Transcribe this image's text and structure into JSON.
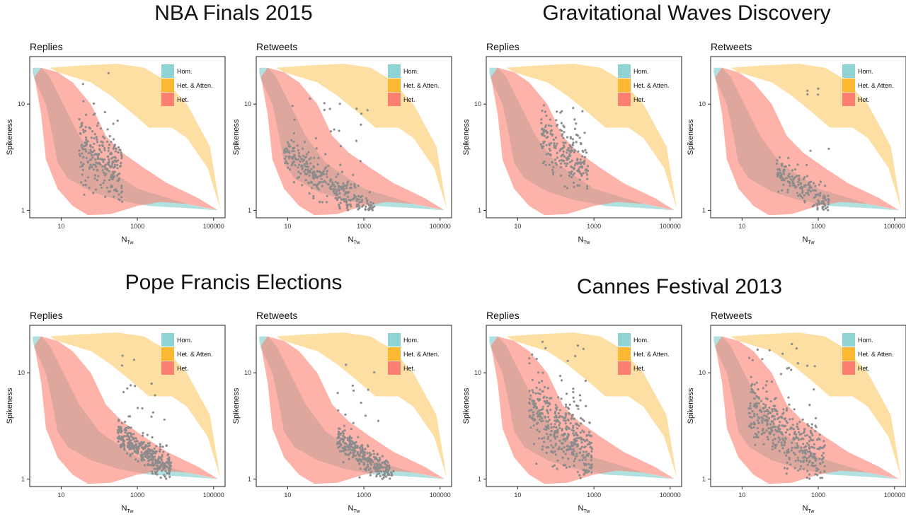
{
  "events": [
    {
      "title": "NBA Finals 2015"
    },
    {
      "title": "Gravitational Waves Discovery"
    },
    {
      "title": "Pope Francis Elections"
    },
    {
      "title": "Cannes Festival 2013"
    }
  ],
  "chart_data": [
    {
      "type": "scatter",
      "event": "NBA Finals 2015",
      "title": "Replies",
      "xlabel": "N_Tw",
      "ylabel": "Spikeness",
      "x_scale": "log",
      "y_scale": "log",
      "xlim": [
        1.5,
        200000
      ],
      "ylim": [
        0.85,
        28
      ],
      "x_ticks": [
        "10",
        "1000",
        "100000"
      ],
      "y_ticks": [
        "1",
        "10"
      ],
      "grid": false,
      "legend_position": "top-right",
      "legend": [
        "Hom.",
        "Het. & Atten.",
        "Het."
      ],
      "cluster": {
        "x_range": [
          30,
          400
        ],
        "y_center": 3,
        "y_spread": 0.9,
        "n": 260,
        "tail_y_max": 20
      }
    },
    {
      "type": "scatter",
      "event": "NBA Finals 2015",
      "title": "Retweets",
      "xlabel": "N_Tw",
      "ylabel": "Spikeness",
      "x_scale": "log",
      "y_scale": "log",
      "xlim": [
        1.5,
        200000
      ],
      "ylim": [
        0.85,
        28
      ],
      "x_ticks": [
        "10",
        "1000",
        "100000"
      ],
      "y_ticks": [
        "1",
        "10"
      ],
      "grid": false,
      "legend_position": "top-right",
      "legend": [
        "Hom.",
        "Het. & Atten.",
        "Het."
      ],
      "cluster": {
        "x_range": [
          8,
          2000
        ],
        "y_center": 1.8,
        "y_spread": 0.5,
        "n": 380,
        "tail_y_max": 12
      }
    },
    {
      "type": "scatter",
      "event": "Gravitational Waves Discovery",
      "title": "Replies",
      "xlabel": "N_Tw",
      "ylabel": "Spikeness",
      "x_scale": "log",
      "y_scale": "log",
      "xlim": [
        1.5,
        200000
      ],
      "ylim": [
        0.85,
        28
      ],
      "x_ticks": [
        "10",
        "1000",
        "100000"
      ],
      "y_ticks": [
        "1",
        "10"
      ],
      "grid": false,
      "legend_position": "top-right",
      "legend": [
        "Hom.",
        "Het. & Atten.",
        "Het."
      ],
      "cluster": {
        "x_range": [
          40,
          700
        ],
        "y_center": 3.5,
        "y_spread": 0.8,
        "n": 220,
        "tail_y_max": 10
      }
    },
    {
      "type": "scatter",
      "event": "Gravitational Waves Discovery",
      "title": "Retweets",
      "xlabel": "N_Tw",
      "ylabel": "Spikeness",
      "x_scale": "log",
      "y_scale": "log",
      "xlim": [
        1.5,
        200000
      ],
      "ylim": [
        0.85,
        28
      ],
      "x_ticks": [
        "10",
        "1000",
        "100000"
      ],
      "y_ticks": [
        "1",
        "10"
      ],
      "grid": false,
      "legend_position": "top-right",
      "legend": [
        "Hom.",
        "Het. & Atten.",
        "Het."
      ],
      "cluster": {
        "x_range": [
          80,
          2000
        ],
        "y_center": 1.6,
        "y_spread": 0.4,
        "n": 180,
        "tail_y_max": 18
      }
    },
    {
      "type": "scatter",
      "event": "Pope Francis Elections",
      "title": "Replies",
      "xlabel": "N_Tw",
      "ylabel": "Spikeness",
      "x_scale": "log",
      "y_scale": "log",
      "xlim": [
        1.5,
        200000
      ],
      "ylim": [
        0.85,
        28
      ],
      "x_ticks": [
        "10",
        "1000",
        "100000"
      ],
      "y_ticks": [
        "1",
        "10"
      ],
      "grid": false,
      "legend_position": "top-right",
      "legend": [
        "Hom.",
        "Het. & Atten.",
        "Het."
      ],
      "cluster": {
        "x_range": [
          300,
          8000
        ],
        "y_center": 1.8,
        "y_spread": 0.4,
        "n": 360,
        "tail_y_max": 16
      }
    },
    {
      "type": "scatter",
      "event": "Pope Francis Elections",
      "title": "Retweets",
      "xlabel": "N_Tw",
      "ylabel": "Spikeness",
      "x_scale": "log",
      "y_scale": "log",
      "xlim": [
        1.5,
        200000
      ],
      "ylim": [
        0.85,
        28
      ],
      "x_ticks": [
        "10",
        "1000",
        "100000"
      ],
      "y_ticks": [
        "1",
        "10"
      ],
      "grid": false,
      "legend_position": "top-right",
      "legend": [
        "Hom.",
        "Het. & Atten.",
        "Het."
      ],
      "cluster": {
        "x_range": [
          200,
          6000
        ],
        "y_center": 1.6,
        "y_spread": 0.35,
        "n": 320,
        "tail_y_max": 12
      }
    },
    {
      "type": "scatter",
      "event": "Cannes Festival 2013",
      "title": "Replies",
      "xlabel": "N_Tw",
      "ylabel": "Spikeness",
      "x_scale": "log",
      "y_scale": "log",
      "xlim": [
        1.5,
        200000
      ],
      "ylim": [
        0.85,
        28
      ],
      "x_ticks": [
        "10",
        "1000",
        "100000"
      ],
      "y_ticks": [
        "1",
        "10"
      ],
      "grid": false,
      "legend_position": "top-right",
      "legend": [
        "Hom.",
        "Het. & Atten.",
        "Het."
      ],
      "cluster": {
        "x_range": [
          20,
          900
        ],
        "y_center": 2.8,
        "y_spread": 0.9,
        "n": 420,
        "tail_y_max": 20
      }
    },
    {
      "type": "scatter",
      "event": "Cannes Festival 2013",
      "title": "Retweets",
      "xlabel": "N_Tw",
      "ylabel": "Spikeness",
      "x_scale": "log",
      "y_scale": "log",
      "xlim": [
        1.5,
        200000
      ],
      "ylim": [
        0.85,
        28
      ],
      "x_ticks": [
        "10",
        "1000",
        "100000"
      ],
      "y_ticks": [
        "1",
        "10"
      ],
      "grid": false,
      "legend_position": "top-right",
      "legend": [
        "Hom.",
        "Het. & Atten.",
        "Het."
      ],
      "cluster": {
        "x_range": [
          15,
          1500
        ],
        "y_center": 2.6,
        "y_spread": 0.8,
        "n": 420,
        "tail_y_max": 20
      }
    }
  ],
  "colors": {
    "hom": "#8fd3d3",
    "het_atten": "#fdb833",
    "het": "#fb8072",
    "points": "#8c8c8c",
    "axis": "#222222"
  }
}
